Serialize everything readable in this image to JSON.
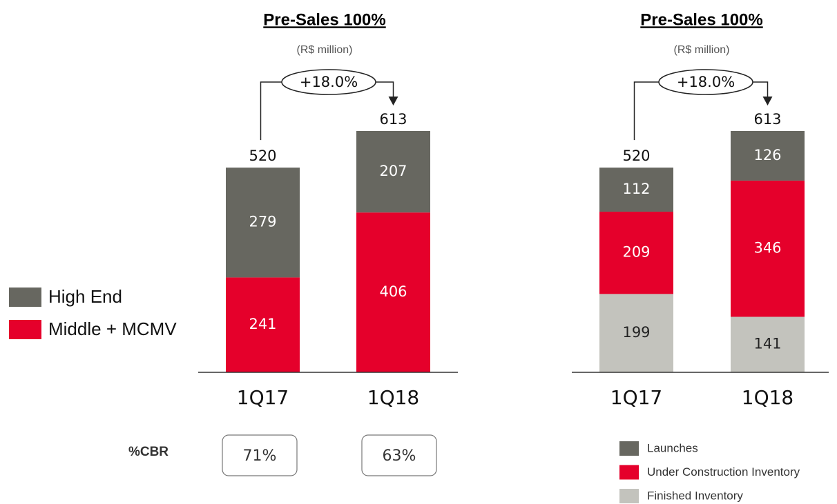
{
  "chart_data": [
    {
      "type": "bar",
      "stacked": true,
      "title": "Pre-Sales 100%",
      "subtitle": "(R$ million)",
      "categories": [
        "1Q17",
        "1Q18"
      ],
      "series": [
        {
          "name": "Middle + MCMV",
          "color": "#e5002b",
          "values": [
            241,
            406
          ]
        },
        {
          "name": "High End",
          "color": "#676760",
          "values": [
            279,
            207
          ]
        }
      ],
      "totals": [
        520,
        613
      ],
      "annotation": "+18.0%",
      "legend": "left"
    },
    {
      "type": "bar",
      "stacked": true,
      "title": "Pre-Sales 100%",
      "subtitle": "(R$ million)",
      "categories": [
        "1Q17",
        "1Q18"
      ],
      "series": [
        {
          "name": "Finished Inventory",
          "color": "#c3c3bd",
          "values": [
            199,
            141
          ]
        },
        {
          "name": "Under Construction Inventory",
          "color": "#e5002b",
          "values": [
            209,
            346
          ]
        },
        {
          "name": "Launches",
          "color": "#676760",
          "values": [
            112,
            126
          ]
        }
      ],
      "totals": [
        520,
        613
      ],
      "annotation": "+18.0%",
      "legend": "lower right"
    }
  ],
  "cbr": {
    "label": "%CBR",
    "values": [
      71,
      63
    ],
    "value_labels": [
      "71%",
      "63%"
    ]
  }
}
